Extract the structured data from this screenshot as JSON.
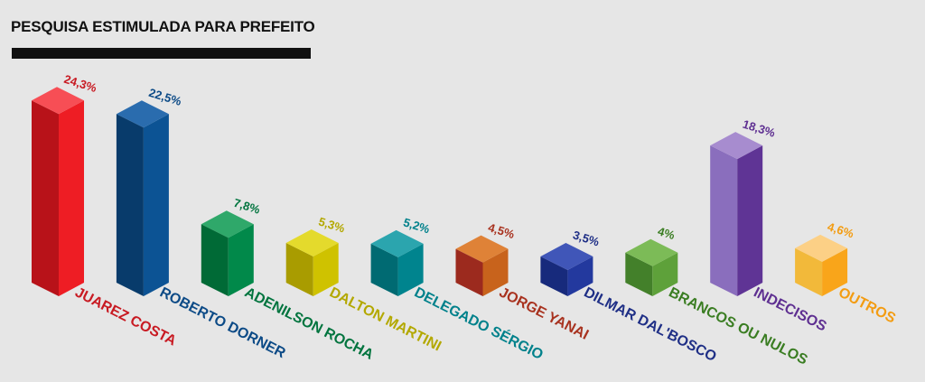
{
  "title": "PESQUISA ESTIMULADA PARA PREFEITO",
  "chart_data": {
    "type": "bar",
    "title": "PESQUISA ESTIMULADA PARA PREFEITO",
    "categories": [
      "JUAREZ COSTA",
      "ROBERTO DORNER",
      "ADENILSON ROCHA",
      "DALTON MARTINI",
      "DELEGADO SÉRGIO",
      "JORGE YANAI",
      "DILMAR DAL'BOSCO",
      "BRANCOS OU NULOS",
      "INDECISOS",
      "OUTROS"
    ],
    "values": [
      24.3,
      22.5,
      7.8,
      5.3,
      5.2,
      4.5,
      3.5,
      4,
      18.3,
      4.6
    ],
    "value_labels": [
      "24,3%",
      "22,5%",
      "7,8%",
      "5,3%",
      "5,2%",
      "4,5%",
      "3,5%",
      "4%",
      "18,3%",
      "4,6%"
    ],
    "unit": "%",
    "grid": false,
    "legend": "none",
    "colors": [
      {
        "front": "#ee1d24",
        "side": "#b81219",
        "top": "#f74e55",
        "text": "#c81a22"
      },
      {
        "front": "#0c5394",
        "side": "#083b6b",
        "top": "#2a6cae",
        "text": "#0c4a86"
      },
      {
        "front": "#01894a",
        "side": "#006a36",
        "top": "#2fa86a",
        "text": "#01743e"
      },
      {
        "front": "#cfc200",
        "side": "#a99c00",
        "top": "#e4da2c",
        "text": "#b3a800"
      },
      {
        "front": "#00848e",
        "side": "#006a72",
        "top": "#2ba5ae",
        "text": "#00818b"
      },
      {
        "front": "#c8631c",
        "side": "#9c2a1e",
        "top": "#df8237",
        "text": "#a8321f"
      },
      {
        "front": "#23399e",
        "side": "#172a7c",
        "top": "#4056b8",
        "text": "#1f2f86"
      },
      {
        "front": "#5ea13a",
        "side": "#43802a",
        "top": "#7cbb57",
        "text": "#3a7d22"
      },
      {
        "front": "#5f3495",
        "side": "#8a6ebd",
        "top": "#a78ccf",
        "text": "#5e2f91"
      },
      {
        "front": "#f9a51a",
        "side": "#f2b93a",
        "top": "#fcd086",
        "text": "#f39c12"
      }
    ]
  }
}
